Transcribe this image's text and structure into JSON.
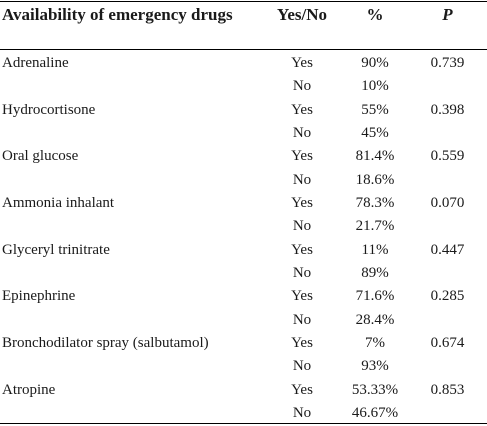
{
  "table": {
    "headers": {
      "drug": "Availability of emergency drugs",
      "yes_no": "Yes/No",
      "percent": "%",
      "p": "P"
    },
    "rows": [
      {
        "drug": "Adrenaline",
        "yes_no": "Yes",
        "percent": "90%",
        "p": "0.739"
      },
      {
        "drug": "",
        "yes_no": "No",
        "percent": "10%",
        "p": ""
      },
      {
        "drug": "Hydrocortisone",
        "yes_no": "Yes",
        "percent": "55%",
        "p": "0.398"
      },
      {
        "drug": "",
        "yes_no": "No",
        "percent": "45%",
        "p": ""
      },
      {
        "drug": "Oral glucose",
        "yes_no": "Yes",
        "percent": "81.4%",
        "p": "0.559"
      },
      {
        "drug": "",
        "yes_no": "No",
        "percent": "18.6%",
        "p": ""
      },
      {
        "drug": "Ammonia inhalant",
        "yes_no": "Yes",
        "percent": "78.3%",
        "p": "0.070"
      },
      {
        "drug": "",
        "yes_no": "No",
        "percent": "21.7%",
        "p": ""
      },
      {
        "drug": "Glyceryl trinitrate",
        "yes_no": "Yes",
        "percent": "11%",
        "p": "0.447"
      },
      {
        "drug": "",
        "yes_no": "No",
        "percent": "89%",
        "p": ""
      },
      {
        "drug": "Epinephrine",
        "yes_no": "Yes",
        "percent": "71.6%",
        "p": "0.285"
      },
      {
        "drug": "",
        "yes_no": "No",
        "percent": "28.4%",
        "p": ""
      },
      {
        "drug": "Bronchodilator spray (salbutamol)",
        "yes_no": "Yes",
        "percent": "7%",
        "p": "0.674"
      },
      {
        "drug": "",
        "yes_no": "No",
        "percent": "93%",
        "p": ""
      },
      {
        "drug": "Atropine",
        "yes_no": "Yes",
        "percent": "53.33%",
        "p": "0.853"
      },
      {
        "drug": "",
        "yes_no": "No",
        "percent": "46.67%",
        "p": ""
      }
    ]
  }
}
